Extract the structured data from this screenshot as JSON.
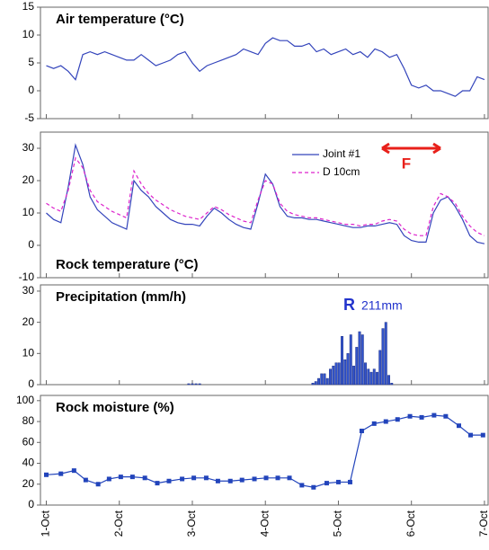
{
  "chart_data": [
    {
      "type": "line",
      "title": "Air temperature (°C)",
      "xlim": [
        -0.08,
        6.05
      ],
      "xticks": [
        0,
        1,
        2,
        3,
        4,
        5,
        6
      ],
      "ylim": [
        -5,
        15
      ],
      "yticks": [
        -5,
        0,
        5,
        10,
        15
      ],
      "series": [
        {
          "name": "Air temperature",
          "color": "#3344bb",
          "x": [
            0,
            0.1,
            0.2,
            0.3,
            0.4,
            0.5,
            0.6,
            0.7,
            0.8,
            0.9,
            1,
            1.1,
            1.2,
            1.3,
            1.4,
            1.5,
            1.6,
            1.7,
            1.8,
            1.9,
            2,
            2.1,
            2.2,
            2.3,
            2.4,
            2.5,
            2.6,
            2.7,
            2.8,
            2.9,
            3,
            3.1,
            3.2,
            3.3,
            3.4,
            3.5,
            3.6,
            3.7,
            3.8,
            3.9,
            4,
            4.1,
            4.2,
            4.3,
            4.4,
            4.5,
            4.6,
            4.7,
            4.8,
            4.9,
            5,
            5.1,
            5.2,
            5.3,
            5.4,
            5.5,
            5.6,
            5.7,
            5.8,
            5.9,
            6
          ],
          "values": [
            4.5,
            4,
            4.5,
            3.5,
            2,
            6.5,
            7,
            6.5,
            7,
            6.5,
            6,
            5.5,
            5.5,
            6.5,
            5.5,
            4.5,
            5,
            5.5,
            6.5,
            7,
            5,
            3.5,
            4.5,
            5,
            5.5,
            6,
            6.5,
            7.5,
            7,
            6.5,
            8.5,
            9.5,
            9,
            9,
            8,
            8,
            8.5,
            7,
            7.5,
            6.5,
            7,
            7.5,
            6.5,
            7,
            6,
            7.5,
            7,
            6,
            6.5,
            4,
            1,
            0.5,
            1,
            0,
            0,
            -0.5,
            -1,
            0,
            0,
            2.5,
            2
          ]
        }
      ]
    },
    {
      "type": "line",
      "title": "Rock temperature (°C)",
      "xlim": [
        -0.08,
        6.05
      ],
      "xticks": [
        0,
        1,
        2,
        3,
        4,
        5,
        6
      ],
      "ylim": [
        -10,
        35
      ],
      "yticks": [
        -10,
        0,
        10,
        20,
        30
      ],
      "annotation": "F",
      "x": [
        0,
        0.1,
        0.2,
        0.3,
        0.4,
        0.5,
        0.6,
        0.7,
        0.8,
        0.9,
        1,
        1.1,
        1.2,
        1.3,
        1.4,
        1.5,
        1.6,
        1.7,
        1.8,
        1.9,
        2,
        2.1,
        2.2,
        2.3,
        2.4,
        2.5,
        2.6,
        2.7,
        2.8,
        2.9,
        3,
        3.1,
        3.2,
        3.3,
        3.4,
        3.5,
        3.6,
        3.7,
        3.8,
        3.9,
        4,
        4.1,
        4.2,
        4.3,
        4.4,
        4.5,
        4.6,
        4.7,
        4.8,
        4.9,
        5,
        5.1,
        5.2,
        5.3,
        5.4,
        5.5,
        5.6,
        5.7,
        5.8,
        5.9,
        6
      ],
      "series": [
        {
          "name": "Joint #1",
          "color": "#3344bb",
          "dash": false,
          "values": [
            10,
            8,
            7,
            18,
            31,
            25,
            15,
            11,
            9,
            7,
            6,
            5,
            20,
            17,
            15,
            12,
            10,
            8,
            7,
            6.5,
            6.5,
            6,
            9,
            11.5,
            10,
            8,
            6.5,
            5.5,
            5,
            13,
            22,
            19,
            12,
            9,
            8.5,
            8.5,
            8,
            8,
            7.5,
            7,
            6.5,
            6,
            5.5,
            5.5,
            6,
            6,
            6.5,
            7,
            6.5,
            3,
            1.5,
            1,
            1,
            10,
            14,
            15,
            12,
            8,
            3,
            1,
            0.5
          ]
        },
        {
          "name": "D 10cm",
          "color": "#dd22cc",
          "dash": true,
          "values": [
            13,
            11.5,
            10.5,
            17,
            27,
            24,
            17,
            13.5,
            12,
            10.5,
            9.5,
            8.5,
            23,
            19,
            16,
            14,
            12.5,
            11,
            10,
            9,
            8.5,
            8,
            10,
            12,
            11,
            9.5,
            8.5,
            7.5,
            7,
            14,
            20,
            19,
            13,
            10.5,
            9.5,
            9,
            8.5,
            8.5,
            8,
            7.5,
            7,
            6.5,
            6.5,
            6,
            6.5,
            6.5,
            7.5,
            8,
            7.5,
            5,
            3.5,
            3,
            3,
            12,
            16,
            15,
            13,
            9,
            6,
            4,
            3
          ]
        }
      ]
    },
    {
      "type": "bar",
      "title": "Precipitation (mm/h)",
      "xlim": [
        -0.08,
        6.05
      ],
      "xticks": [
        0,
        1,
        2,
        3,
        4,
        5,
        6
      ],
      "ylim": [
        0,
        32
      ],
      "yticks": [
        0,
        10,
        20,
        30
      ],
      "color": "#3355cc",
      "annotation": [
        "R",
        "211mm"
      ],
      "x": [
        1.95,
        2.0,
        2.05,
        2.1,
        3.65,
        3.69,
        3.73,
        3.77,
        3.81,
        3.85,
        3.89,
        3.93,
        3.97,
        4.01,
        4.05,
        4.09,
        4.13,
        4.17,
        4.21,
        4.25,
        4.29,
        4.33,
        4.37,
        4.41,
        4.45,
        4.49,
        4.53,
        4.57,
        4.61,
        4.65,
        4.69,
        4.73
      ],
      "values": [
        0.3,
        0.3,
        0.3,
        0.3,
        0.5,
        1,
        2,
        3.5,
        3.5,
        2,
        5,
        6,
        7,
        7,
        15.5,
        8,
        10,
        16,
        6,
        12,
        17,
        16,
        7,
        5,
        4,
        5,
        4,
        11,
        18,
        20,
        3,
        0.5
      ]
    },
    {
      "type": "line",
      "title": "Rock moisture (%)",
      "marker": "square",
      "color": "#2244bb",
      "xlim": [
        -0.08,
        6.05
      ],
      "xticks": [
        {
          "value": 0,
          "label": "1-Oct"
        },
        {
          "value": 1,
          "label": "2-Oct"
        },
        {
          "value": 2,
          "label": "3-Oct"
        },
        {
          "value": 3,
          "label": "4-Oct"
        },
        {
          "value": 4,
          "label": "5-Oct"
        },
        {
          "value": 5,
          "label": "6-Oct"
        },
        {
          "value": 6,
          "label": "7-Oct"
        }
      ],
      "ylim": [
        0,
        105
      ],
      "yticks": [
        0,
        20,
        40,
        60,
        80,
        100
      ],
      "x": [
        0,
        0.2,
        0.38,
        0.54,
        0.71,
        0.86,
        1.02,
        1.18,
        1.35,
        1.52,
        1.68,
        1.86,
        2.02,
        2.19,
        2.35,
        2.52,
        2.68,
        2.85,
        3.01,
        3.17,
        3.33,
        3.5,
        3.66,
        3.84,
        4,
        4.16,
        4.32,
        4.49,
        4.65,
        4.81,
        4.98,
        5.14,
        5.31,
        5.47,
        5.65,
        5.81,
        5.98
      ],
      "values": [
        29,
        30,
        33,
        24,
        20,
        25,
        27,
        27,
        26,
        21,
        23,
        25,
        26,
        26,
        23,
        23,
        24,
        25,
        26,
        26,
        26,
        19,
        17,
        21,
        22,
        22,
        71,
        78,
        80,
        82,
        85,
        84,
        86,
        85,
        76,
        67,
        67
      ]
    }
  ]
}
